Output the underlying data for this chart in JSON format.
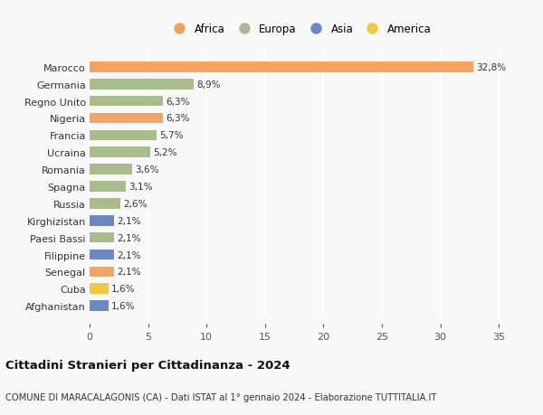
{
  "countries": [
    "Marocco",
    "Germania",
    "Regno Unito",
    "Nigeria",
    "Francia",
    "Ucraina",
    "Romania",
    "Spagna",
    "Russia",
    "Kirghizistan",
    "Paesi Bassi",
    "Filippine",
    "Senegal",
    "Cuba",
    "Afghanistan"
  ],
  "values": [
    32.8,
    8.9,
    6.3,
    6.3,
    5.7,
    5.2,
    3.6,
    3.1,
    2.6,
    2.1,
    2.1,
    2.1,
    2.1,
    1.6,
    1.6
  ],
  "labels": [
    "32,8%",
    "8,9%",
    "6,3%",
    "6,3%",
    "5,7%",
    "5,2%",
    "3,6%",
    "3,1%",
    "2,6%",
    "2,1%",
    "2,1%",
    "2,1%",
    "2,1%",
    "1,6%",
    "1,6%"
  ],
  "colors": [
    "#f4a460",
    "#a8bc8c",
    "#a8bc8c",
    "#f4a460",
    "#a8bc8c",
    "#a8bc8c",
    "#a8bc8c",
    "#a8bc8c",
    "#a8bc8c",
    "#6b88c2",
    "#a8bc8c",
    "#6b88c2",
    "#f4a460",
    "#f0c842",
    "#6b88c2"
  ],
  "legend_labels": [
    "Africa",
    "Europa",
    "Asia",
    "America"
  ],
  "legend_colors": [
    "#f4a460",
    "#a8bc8c",
    "#6b88c2",
    "#f0c842"
  ],
  "title": "Cittadini Stranieri per Cittadinanza - 2024",
  "subtitle": "COMUNE DI MARACALAGONIS (CA) - Dati ISTAT al 1° gennaio 2024 - Elaborazione TUTTITALIA.IT",
  "xlim": [
    0,
    36
  ],
  "xticks": [
    0,
    5,
    10,
    15,
    20,
    25,
    30,
    35
  ],
  "background_color": "#f8f8f8",
  "bar_height": 0.62
}
